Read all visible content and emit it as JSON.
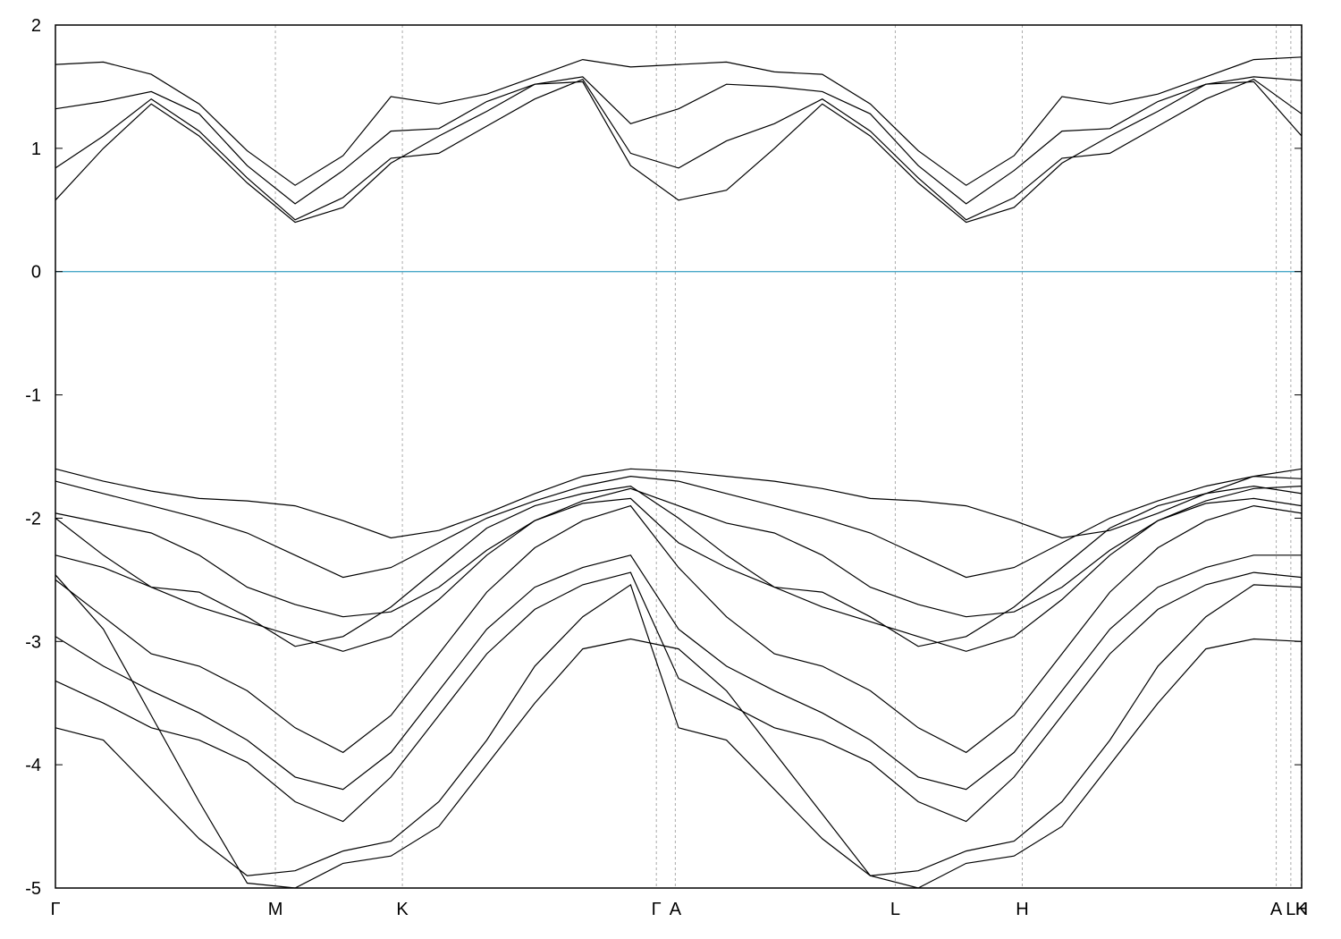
{
  "chart_data": {
    "type": "line",
    "title": "",
    "xlabel": "",
    "ylabel": "",
    "ylim": [
      -5,
      2
    ],
    "y_ticks": [
      {
        "value": 2,
        "label": "2"
      },
      {
        "value": 1,
        "label": "1"
      },
      {
        "value": 0,
        "label": "0"
      },
      {
        "value": -1,
        "label": "-1"
      },
      {
        "value": -2,
        "label": "-2"
      },
      {
        "value": -3,
        "label": "-3"
      },
      {
        "value": -4,
        "label": "-4"
      },
      {
        "value": -5,
        "label": "-5"
      }
    ],
    "x_ticks": [
      {
        "value": 0.0,
        "label": "Γ"
      },
      {
        "value": 0.1765,
        "label": "M"
      },
      {
        "value": 0.2784,
        "label": "K"
      },
      {
        "value": 0.4822,
        "label": "Γ"
      },
      {
        "value": 0.4974,
        "label": "A"
      },
      {
        "value": 0.6739,
        "label": "L"
      },
      {
        "value": 0.7758,
        "label": "H"
      },
      {
        "value": 0.9796,
        "label": "A"
      },
      {
        "value": 0.9913,
        "label": "L"
      },
      {
        "value": 0.9997,
        "label": "K"
      },
      {
        "value": 1.0,
        "label": "H"
      }
    ],
    "xlim": [
      0,
      1
    ],
    "fermi_level": {
      "value": 0,
      "color": "#4aa8c8"
    },
    "grid": "vertical dashed lines at high-symmetry points",
    "line_color": "#000000",
    "series": [
      {
        "values": [
          0.58,
          1.0,
          1.36,
          1.1,
          0.72,
          0.4,
          0.52,
          0.88,
          1.1,
          1.3,
          1.52,
          1.54,
          0.86,
          0.58,
          0.66,
          1.0,
          1.36,
          1.1,
          0.72,
          0.4,
          0.52,
          0.88,
          1.1,
          1.3,
          1.52,
          1.54,
          1.1
        ]
      },
      {
        "values": [
          0.84,
          1.1,
          1.4,
          1.14,
          0.76,
          0.42,
          0.6,
          0.92,
          0.96,
          1.18,
          1.4,
          1.56,
          0.96,
          0.84,
          1.06,
          1.2,
          1.4,
          1.14,
          0.76,
          0.42,
          0.6,
          0.92,
          0.96,
          1.18,
          1.4,
          1.56,
          1.28
        ]
      },
      {
        "values": [
          1.32,
          1.38,
          1.46,
          1.28,
          0.86,
          0.55,
          0.82,
          1.14,
          1.16,
          1.38,
          1.52,
          1.58,
          1.2,
          1.32,
          1.52,
          1.5,
          1.46,
          1.28,
          0.86,
          0.55,
          0.82,
          1.14,
          1.16,
          1.38,
          1.52,
          1.58,
          1.55
        ]
      },
      {
        "values": [
          1.68,
          1.7,
          1.6,
          1.36,
          0.98,
          0.7,
          0.94,
          1.42,
          1.36,
          1.44,
          1.58,
          1.72,
          1.66,
          1.68,
          1.7,
          1.62,
          1.6,
          1.36,
          0.98,
          0.7,
          0.94,
          1.42,
          1.36,
          1.44,
          1.58,
          1.72,
          1.74
        ]
      },
      {
        "values": [
          -1.6,
          -1.7,
          -1.78,
          -1.84,
          -1.86,
          -1.9,
          -2.02,
          -2.16,
          -2.1,
          -1.96,
          -1.8,
          -1.66,
          -1.6,
          -1.62,
          -1.66,
          -1.7,
          -1.76,
          -1.84,
          -1.86,
          -1.9,
          -2.02,
          -2.16,
          -2.1,
          -1.96,
          -1.8,
          -1.66,
          -1.6
        ]
      },
      {
        "values": [
          -1.7,
          -1.8,
          -1.9,
          -2.0,
          -2.12,
          -2.3,
          -2.48,
          -2.4,
          -2.2,
          -2.0,
          -1.86,
          -1.74,
          -1.66,
          -1.7,
          -1.8,
          -1.9,
          -2.0,
          -2.12,
          -2.3,
          -2.48,
          -2.4,
          -2.2,
          -2.0,
          -1.86,
          -1.74,
          -1.66,
          -1.68
        ]
      },
      {
        "values": [
          -1.96,
          -2.04,
          -2.12,
          -2.3,
          -2.56,
          -2.7,
          -2.8,
          -2.76,
          -2.56,
          -2.26,
          -2.02,
          -1.86,
          -1.76,
          -1.9,
          -2.04,
          -2.12,
          -2.3,
          -2.56,
          -2.7,
          -2.8,
          -2.76,
          -2.56,
          -2.26,
          -2.02,
          -1.86,
          -1.76,
          -1.74
        ]
      },
      {
        "values": [
          -2.3,
          -2.4,
          -2.56,
          -2.72,
          -2.84,
          -2.96,
          -3.08,
          -2.96,
          -2.66,
          -2.3,
          -2.02,
          -1.88,
          -1.84,
          -2.2,
          -2.4,
          -2.56,
          -2.72,
          -2.84,
          -2.96,
          -3.08,
          -2.96,
          -2.66,
          -2.3,
          -2.02,
          -1.88,
          -1.84,
          -1.9
        ]
      },
      {
        "values": [
          -2.5,
          -2.8,
          -3.1,
          -3.2,
          -3.4,
          -3.7,
          -3.9,
          -3.6,
          -3.1,
          -2.6,
          -2.24,
          -2.02,
          -1.9,
          -2.4,
          -2.8,
          -3.1,
          -3.2,
          -3.4,
          -3.7,
          -3.9,
          -3.6,
          -3.1,
          -2.6,
          -2.24,
          -2.02,
          -1.9,
          -1.96
        ]
      },
      {
        "values": [
          -2.96,
          -3.2,
          -3.4,
          -3.58,
          -3.8,
          -4.1,
          -4.2,
          -3.9,
          -3.4,
          -2.9,
          -2.56,
          -2.4,
          -2.3,
          -2.9,
          -3.2,
          -3.4,
          -3.58,
          -3.8,
          -4.1,
          -4.2,
          -3.9,
          -3.4,
          -2.9,
          -2.56,
          -2.4,
          -2.3,
          -2.3
        ]
      },
      {
        "values": [
          -3.32,
          -3.5,
          -3.7,
          -3.8,
          -3.98,
          -4.3,
          -4.46,
          -4.1,
          -3.6,
          -3.1,
          -2.74,
          -2.54,
          -2.44,
          -3.3,
          -3.5,
          -3.7,
          -3.8,
          -3.98,
          -4.3,
          -4.46,
          -4.1,
          -3.6,
          -3.1,
          -2.74,
          -2.54,
          -2.44,
          -2.48
        ]
      },
      {
        "values": [
          -3.7,
          -3.8,
          -4.2,
          -4.6,
          -4.9,
          -4.86,
          -4.7,
          -4.62,
          -4.3,
          -3.8,
          -3.2,
          -2.8,
          -2.54,
          -3.7,
          -3.8,
          -4.2,
          -4.6,
          -4.9,
          -4.86,
          -4.7,
          -4.62,
          -4.3,
          -3.8,
          -3.2,
          -2.8,
          -2.54,
          -2.56
        ]
      },
      {
        "values": [
          -2.46,
          -2.9,
          -3.6,
          -4.3,
          -4.96,
          -5.0,
          -4.8,
          -4.74,
          -4.5,
          -4.0,
          -3.5,
          -3.06,
          -2.98,
          -3.06,
          -3.4,
          -3.9,
          -4.4,
          -4.9,
          -5.0,
          -4.8,
          -4.74,
          -4.5,
          -4.0,
          -3.5,
          -3.06,
          -2.98,
          -3.0
        ]
      },
      {
        "values": [
          -2.0,
          -2.3,
          -2.56,
          -2.6,
          -2.8,
          -3.04,
          -2.96,
          -2.72,
          -2.4,
          -2.08,
          -1.9,
          -1.8,
          -1.74,
          -2.0,
          -2.3,
          -2.56,
          -2.6,
          -2.8,
          -3.04,
          -2.96,
          -2.72,
          -2.4,
          -2.08,
          -1.9,
          -1.8,
          -1.74,
          -1.8
        ]
      }
    ]
  }
}
